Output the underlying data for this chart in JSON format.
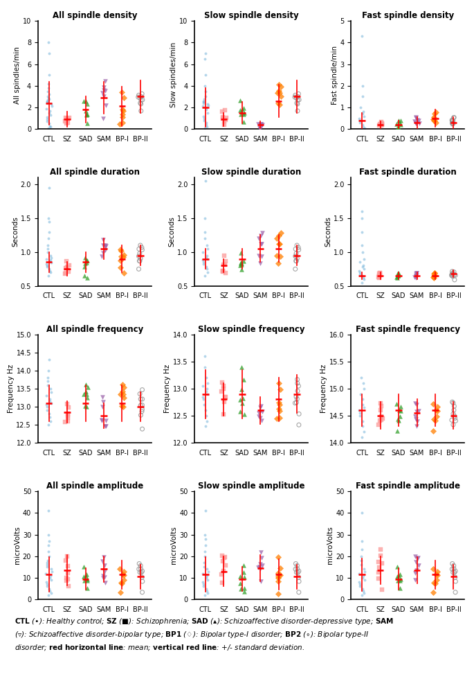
{
  "titles": [
    [
      "All spindle density",
      "Slow spindle density",
      "Fast spindle density"
    ],
    [
      "All spindle duration",
      "Slow spindle duration",
      "Fast spindle duration"
    ],
    [
      "All spindle frequency",
      "Slow spindle frequency",
      "Fast spindle frequency"
    ],
    [
      "All spindle amplitude",
      "Slow spindle amplitude",
      "Fast spindle amplitude"
    ]
  ],
  "ylabels": [
    [
      "All spindles/min",
      "Slow spindles/min",
      "Fast spindle/min"
    ],
    [
      "Seconds",
      "Seconds",
      "Seconds"
    ],
    [
      "Frequency Hz",
      "Frequency Hz",
      "Frequency Hz"
    ],
    [
      "microVolts",
      "microVolts",
      "microVolts"
    ]
  ],
  "ylims": [
    [
      [
        0,
        10
      ],
      [
        0,
        10
      ],
      [
        0,
        5
      ]
    ],
    [
      [
        0.5,
        2.1
      ],
      [
        0.5,
        2.1
      ],
      [
        0.5,
        2.1
      ]
    ],
    [
      [
        12.0,
        15.0
      ],
      [
        12.0,
        14.0
      ],
      [
        14.0,
        16.0
      ]
    ],
    [
      [
        0,
        50
      ],
      [
        0,
        50
      ],
      [
        0,
        50
      ]
    ]
  ],
  "yticks": [
    [
      [
        0,
        2,
        4,
        6,
        8,
        10
      ],
      [
        0,
        2,
        4,
        6,
        8,
        10
      ],
      [
        0,
        1,
        2,
        3,
        4,
        5
      ]
    ],
    [
      [
        0.5,
        1.0,
        1.5,
        2.0
      ],
      [
        0.5,
        1.0,
        1.5,
        2.0
      ],
      [
        0.5,
        1.0,
        1.5,
        2.0
      ]
    ],
    [
      [
        12.0,
        12.5,
        13.0,
        13.5,
        14.0,
        14.5,
        15.0
      ],
      [
        12.0,
        12.5,
        13.0,
        13.5,
        14.0
      ],
      [
        14.0,
        14.5,
        15.0,
        15.5,
        16.0
      ]
    ],
    [
      [
        0,
        10,
        20,
        30,
        40,
        50
      ],
      [
        0,
        10,
        20,
        30,
        40,
        50
      ],
      [
        0,
        10,
        20,
        30,
        40,
        50
      ]
    ]
  ],
  "groups": [
    "CTL",
    "SZ",
    "SAD",
    "SAM",
    "BP-I",
    "BP-II"
  ],
  "group_colors": [
    "#6baed6",
    "#fb9a99",
    "#33a02c",
    "#9e66ab",
    "#ff7f00",
    "#969696"
  ],
  "group_markers": [
    "o",
    "s",
    "^",
    "v",
    "D",
    "o"
  ],
  "group_filled": [
    true,
    true,
    true,
    true,
    true,
    false
  ],
  "means": [
    [
      [
        2.4,
        0.9,
        1.8,
        2.9,
        2.1,
        3.0
      ],
      [
        2.0,
        0.9,
        1.5,
        0.4,
        2.6,
        3.0
      ],
      [
        0.4,
        0.2,
        0.2,
        0.3,
        0.5,
        0.3
      ]
    ],
    [
      [
        0.85,
        0.75,
        0.85,
        1.05,
        0.9,
        0.95
      ],
      [
        0.9,
        0.8,
        0.9,
        1.05,
        1.05,
        0.95
      ],
      [
        0.65,
        0.65,
        0.65,
        0.65,
        0.65,
        0.68
      ]
    ],
    [
      [
        13.1,
        12.85,
        13.1,
        12.75,
        13.1,
        13.0
      ],
      [
        12.9,
        12.8,
        12.9,
        12.6,
        12.8,
        12.9
      ],
      [
        14.6,
        14.5,
        14.6,
        14.55,
        14.6,
        14.5
      ]
    ],
    [
      [
        11.5,
        13.5,
        9.5,
        14.0,
        11.5,
        10.5
      ],
      [
        11.5,
        13.0,
        9.5,
        14.5,
        11.5,
        10.5
      ],
      [
        11.5,
        13.5,
        9.5,
        13.5,
        11.5,
        10.5
      ]
    ]
  ],
  "stds": [
    [
      [
        2.0,
        0.7,
        1.2,
        1.5,
        1.8,
        1.5
      ],
      [
        1.8,
        0.6,
        1.0,
        0.3,
        1.5,
        1.5
      ],
      [
        0.35,
        0.15,
        0.2,
        0.25,
        0.4,
        0.25
      ]
    ],
    [
      [
        0.15,
        0.1,
        0.15,
        0.15,
        0.2,
        0.15
      ],
      [
        0.15,
        0.1,
        0.15,
        0.2,
        0.2,
        0.15
      ],
      [
        0.05,
        0.05,
        0.05,
        0.05,
        0.05,
        0.05
      ]
    ],
    [
      [
        0.5,
        0.3,
        0.5,
        0.35,
        0.5,
        0.4
      ],
      [
        0.45,
        0.3,
        0.45,
        0.25,
        0.4,
        0.35
      ],
      [
        0.3,
        0.25,
        0.3,
        0.25,
        0.3,
        0.25
      ]
    ],
    [
      [
        8.0,
        7.0,
        5.0,
        6.0,
        6.5,
        5.5
      ],
      [
        8.0,
        7.0,
        5.5,
        6.0,
        7.0,
        5.5
      ],
      [
        7.5,
        6.5,
        5.0,
        6.0,
        6.5,
        5.5
      ]
    ]
  ],
  "ctl_violin_data": {
    "density_all": [
      0.1,
      0.2,
      0.3,
      0.5,
      0.7,
      0.9,
      1.1,
      1.3,
      1.5,
      1.7,
      1.9,
      2.1,
      2.3,
      2.4,
      2.5,
      2.6,
      2.7,
      2.8,
      2.9,
      3.0,
      3.2,
      3.5,
      3.8,
      4.2,
      5.0,
      7.0,
      8.0
    ],
    "density_slow": [
      0.1,
      0.2,
      0.4,
      0.6,
      0.8,
      1.0,
      1.2,
      1.5,
      1.8,
      2.0,
      2.1,
      2.2,
      2.3,
      2.4,
      2.5,
      2.6,
      2.8,
      3.0,
      3.5,
      4.0,
      5.0,
      6.5,
      7.0
    ],
    "density_fast": [
      0.0,
      0.05,
      0.1,
      0.2,
      0.3,
      0.4,
      0.5,
      0.6,
      0.7,
      0.8,
      1.0,
      1.5,
      2.0,
      4.3
    ],
    "duration_all": [
      0.65,
      0.7,
      0.72,
      0.75,
      0.78,
      0.8,
      0.82,
      0.84,
      0.86,
      0.88,
      0.9,
      0.92,
      0.95,
      1.0,
      1.05,
      1.1,
      1.2,
      1.3,
      1.45,
      1.5,
      1.95
    ],
    "duration_slow": [
      0.65,
      0.7,
      0.75,
      0.78,
      0.82,
      0.85,
      0.88,
      0.9,
      0.92,
      0.95,
      1.0,
      1.05,
      1.1,
      1.2,
      1.3,
      1.5,
      2.05
    ],
    "duration_fast": [
      0.55,
      0.6,
      0.62,
      0.65,
      0.67,
      0.7,
      0.72,
      0.75,
      0.78,
      0.8,
      0.85,
      0.9,
      1.0,
      1.1,
      1.3,
      1.5,
      1.6
    ],
    "freq_all": [
      12.5,
      12.6,
      12.7,
      12.8,
      12.9,
      13.0,
      13.05,
      13.1,
      13.15,
      13.2,
      13.3,
      13.4,
      13.5,
      13.6,
      13.7,
      13.8,
      14.0,
      14.3
    ],
    "freq_slow": [
      12.3,
      12.4,
      12.5,
      12.6,
      12.7,
      12.8,
      12.85,
      12.9,
      12.95,
      13.0,
      13.05,
      13.1,
      13.2,
      13.4,
      13.6
    ],
    "freq_fast": [
      14.1,
      14.2,
      14.3,
      14.4,
      14.5,
      14.55,
      14.6,
      14.65,
      14.7,
      14.8,
      14.9,
      15.0,
      15.1,
      15.2
    ],
    "amp_all": [
      2,
      3,
      4,
      5,
      6,
      7,
      8,
      9,
      10,
      11,
      12,
      13,
      14,
      15,
      16,
      17,
      18,
      20,
      22,
      25,
      27,
      30,
      41
    ],
    "amp_slow": [
      2,
      3,
      4,
      5,
      6,
      7,
      8,
      9,
      10,
      11,
      12,
      13,
      14,
      15,
      17,
      20,
      22,
      25,
      28,
      30,
      41
    ],
    "amp_fast": [
      2,
      3,
      4,
      5,
      6,
      7,
      8,
      9,
      10,
      11,
      12,
      13,
      14,
      16,
      18,
      20,
      23,
      27,
      40
    ]
  },
  "legend_text": "CTL (●): Healthy control; SZ (■): Schizophrenia; SAD (▲): Schizoaffective disorder-depressive type; SAM (▼): Schizoaffective disorder-bipolar type; BP1 (◆): Bipolar type-I disorder; BP2 (○): Bipolar type-II disorder; red horizontal line: mean; vertical red line: +/- standard deviation.",
  "background_color": "#ffffff"
}
